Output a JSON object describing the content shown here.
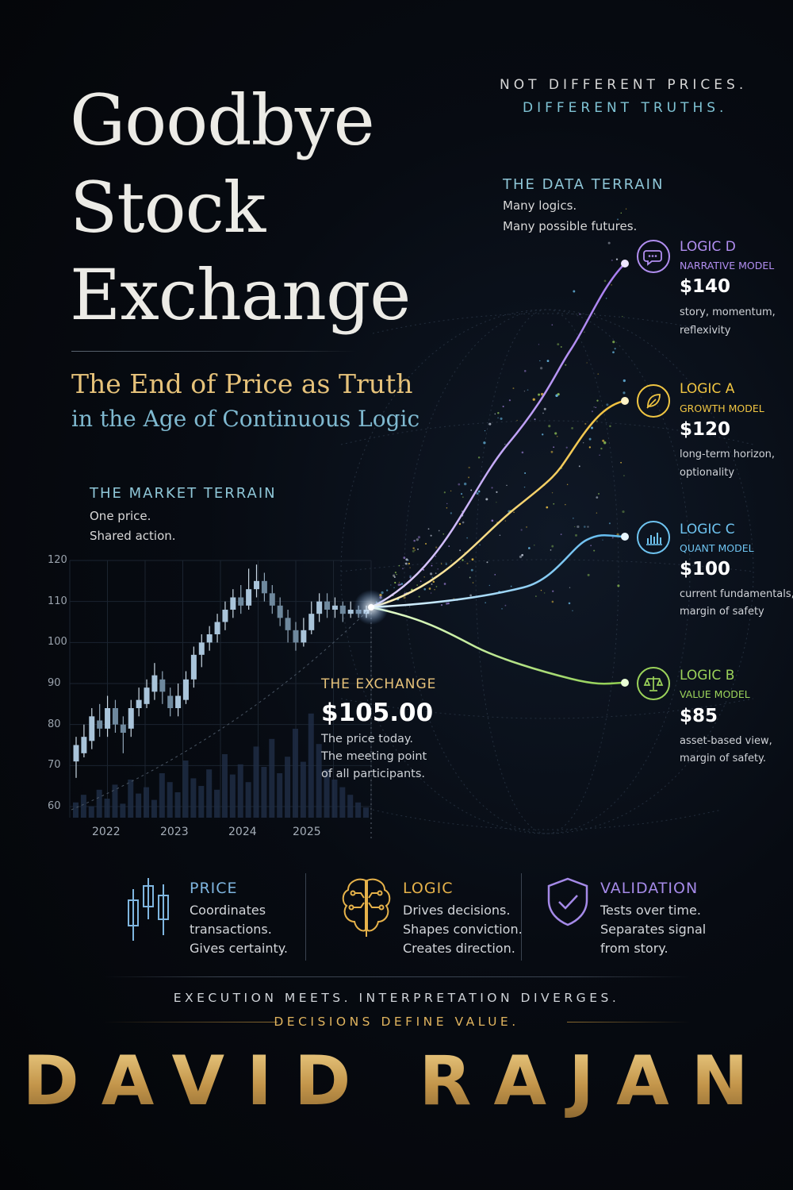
{
  "title": {
    "line1": "Goodbye",
    "line2": "Stock",
    "line3": "Exchange"
  },
  "tagline_top": {
    "line1": "NOT DIFFERENT PRICES.",
    "line2": "DIFFERENT TRUTHS."
  },
  "subtitle": {
    "line1": "The End of Price as Truth",
    "line2": "in the Age of Continuous Logic"
  },
  "data_terrain": {
    "heading": "THE DATA TERRAIN",
    "line1": "Many logics.",
    "line2": "Many possible futures."
  },
  "market_terrain": {
    "heading": "THE MARKET TERRAIN",
    "line1": "One price.",
    "line2": "Shared action."
  },
  "chart": {
    "y_ticks": [
      "120",
      "110",
      "100",
      "90",
      "80",
      "70",
      "60"
    ],
    "x_ticks": [
      "2022",
      "2023",
      "2024",
      "2025"
    ],
    "candles": [
      {
        "o": 71,
        "c": 75,
        "h": 77,
        "l": 67
      },
      {
        "o": 73,
        "c": 77,
        "h": 80,
        "l": 72
      },
      {
        "o": 76,
        "c": 82,
        "h": 84,
        "l": 74
      },
      {
        "o": 81,
        "c": 79,
        "h": 85,
        "l": 77
      },
      {
        "o": 79,
        "c": 84,
        "h": 87,
        "l": 77
      },
      {
        "o": 84,
        "c": 80,
        "h": 86,
        "l": 78
      },
      {
        "o": 80,
        "c": 78,
        "h": 82,
        "l": 73
      },
      {
        "o": 79,
        "c": 84,
        "h": 86,
        "l": 77
      },
      {
        "o": 84,
        "c": 86,
        "h": 89,
        "l": 82
      },
      {
        "o": 85,
        "c": 89,
        "h": 91,
        "l": 84
      },
      {
        "o": 88,
        "c": 92,
        "h": 95,
        "l": 86
      },
      {
        "o": 91,
        "c": 88,
        "h": 93,
        "l": 85
      },
      {
        "o": 87,
        "c": 84,
        "h": 89,
        "l": 82
      },
      {
        "o": 84,
        "c": 87,
        "h": 90,
        "l": 82
      },
      {
        "o": 86,
        "c": 91,
        "h": 93,
        "l": 85
      },
      {
        "o": 91,
        "c": 97,
        "h": 99,
        "l": 89
      },
      {
        "o": 97,
        "c": 100,
        "h": 102,
        "l": 94
      },
      {
        "o": 100,
        "c": 102,
        "h": 104,
        "l": 98
      },
      {
        "o": 102,
        "c": 105,
        "h": 107,
        "l": 100
      },
      {
        "o": 105,
        "c": 108,
        "h": 110,
        "l": 103
      },
      {
        "o": 108,
        "c": 111,
        "h": 113,
        "l": 106
      },
      {
        "o": 111,
        "c": 109,
        "h": 114,
        "l": 107
      },
      {
        "o": 109,
        "c": 113,
        "h": 118,
        "l": 108
      },
      {
        "o": 113,
        "c": 115,
        "h": 119,
        "l": 111
      },
      {
        "o": 115,
        "c": 112,
        "h": 117,
        "l": 110
      },
      {
        "o": 112,
        "c": 109,
        "h": 114,
        "l": 107
      },
      {
        "o": 109,
        "c": 106,
        "h": 111,
        "l": 104
      },
      {
        "o": 106,
        "c": 103,
        "h": 108,
        "l": 100
      },
      {
        "o": 103,
        "c": 100,
        "h": 105,
        "l": 98
      },
      {
        "o": 100,
        "c": 103,
        "h": 106,
        "l": 99
      },
      {
        "o": 103,
        "c": 107,
        "h": 110,
        "l": 102
      },
      {
        "o": 107,
        "c": 110,
        "h": 112,
        "l": 105
      },
      {
        "o": 110,
        "c": 108,
        "h": 112,
        "l": 106
      },
      {
        "o": 108,
        "c": 109,
        "h": 111,
        "l": 106
      },
      {
        "o": 109,
        "c": 107,
        "h": 110,
        "l": 105
      },
      {
        "o": 107,
        "c": 108,
        "h": 110,
        "l": 106
      },
      {
        "o": 108,
        "c": 107,
        "h": 109,
        "l": 106
      },
      {
        "o": 107,
        "c": 108,
        "h": 109,
        "l": 106
      }
    ],
    "volumes": [
      12,
      18,
      9,
      22,
      15,
      26,
      11,
      30,
      19,
      24,
      14,
      35,
      28,
      20,
      45,
      31,
      25,
      38,
      22,
      50,
      34,
      42,
      28,
      56,
      40,
      62,
      35,
      48,
      70,
      44,
      82,
      58,
      38,
      30,
      24,
      18,
      12,
      8
    ],
    "ylim": [
      60,
      120
    ]
  },
  "exchange": {
    "heading": "THE EXCHANGE",
    "price": "$105.00",
    "line1": "The price today.",
    "line2": "The meeting point",
    "line3": "of all participants."
  },
  "logics": [
    {
      "name": "LOGIC D",
      "model": "NARRATIVE MODEL",
      "price": "$140",
      "note1": "story, momentum,",
      "note2": "reflexivity",
      "color": "#b18ef0",
      "icon": "speech-bubble-icon"
    },
    {
      "name": "LOGIC A",
      "model": "GROWTH MODEL",
      "price": "$120",
      "note1": "long-term horizon,",
      "note2": "optionality",
      "color": "#f0c542",
      "icon": "leaf-icon"
    },
    {
      "name": "LOGIC C",
      "model": "QUANT MODEL",
      "price": "$100",
      "note1": "current fundamentals,",
      "note2": "margin of safety",
      "color": "#6ec3f0",
      "icon": "bar-chart-icon"
    },
    {
      "name": "LOGIC B",
      "model": "VALUE MODEL",
      "price": "$85",
      "note1": "asset-based view,",
      "note2": "margin of safety.",
      "color": "#9bd25a",
      "icon": "scales-icon"
    }
  ],
  "features": [
    {
      "heading": "PRICE",
      "line1": "Coordinates",
      "line2": "transactions.",
      "line3": "Gives certainty.",
      "color": "#7fb6e0",
      "icon": "candlestick-icon"
    },
    {
      "heading": "LOGIC",
      "line1": "Drives decisions.",
      "line2": "Shapes conviction.",
      "line3": "Creates direction.",
      "color": "#e6b24a",
      "icon": "brain-icon"
    },
    {
      "heading": "VALIDATION",
      "line1": "Tests over time.",
      "line2": "Separates signal",
      "line3": "from story.",
      "color": "#a58ae8",
      "icon": "shield-check-icon"
    }
  ],
  "tagline_bottom": {
    "line1": "EXECUTION MEETS.   INTERPRETATION DIVERGES.",
    "line2": "DECISIONS DEFINE VALUE."
  },
  "author": "DAVID RAJAN"
}
